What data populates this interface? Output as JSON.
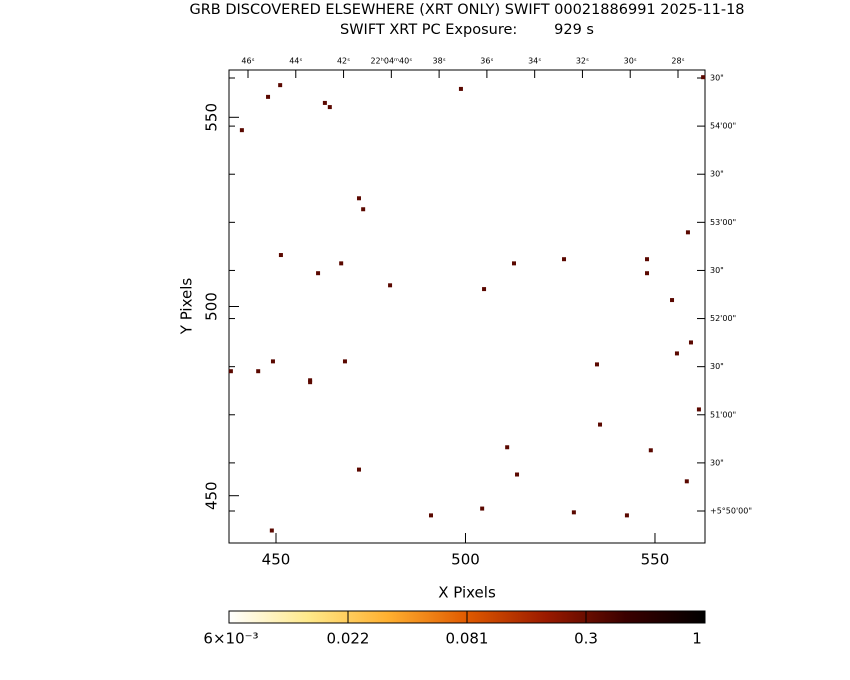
{
  "chart_data": {
    "type": "scatter",
    "title": "GRB DISCOVERED ELSEWHERE (XRT ONLY) SWIFT 00021886991 2025-11-18",
    "subtitle": "SWIFT XRT PC Exposure:        929 s",
    "x_label": "X Pixels",
    "y_label": "Y Pixels",
    "xlim": [
      437.6,
      563.2
    ],
    "ylim": [
      437.5,
      562.5
    ],
    "xticks": [
      450,
      500,
      550
    ],
    "yticks": [
      450,
      500,
      550
    ],
    "color": "#5a0800",
    "x": [
      562.7,
      451.1,
      447.9,
      441.0,
      462.9,
      464.2,
      498.8,
      471.9,
      473.0,
      558.7,
      451.3,
      467.2,
      461.1,
      480.1,
      512.8,
      526.0,
      547.9,
      547.9,
      504.9,
      554.5,
      559.5,
      555.8,
      449.2,
      468.2,
      534.7,
      438.1,
      445.3,
      459.0,
      459.0,
      561.6,
      535.5,
      511.0,
      548.9,
      471.9,
      513.6,
      558.4,
      504.4,
      528.6,
      490.9,
      542.6,
      448.9
    ],
    "y": [
      560.6,
      558.5,
      555.4,
      546.6,
      553.8,
      552.7,
      557.5,
      528.6,
      525.7,
      519.6,
      513.6,
      511.4,
      508.8,
      505.6,
      511.4,
      512.5,
      512.5,
      508.8,
      504.6,
      501.7,
      490.5,
      487.6,
      485.5,
      485.5,
      484.7,
      482.9,
      482.9,
      480.5,
      480.0,
      472.8,
      468.8,
      462.8,
      462.0,
      456.9,
      455.6,
      453.8,
      446.6,
      445.6,
      444.8,
      444.8,
      440.8
    ],
    "top_axis_labels": [
      "46ˢ",
      "44ˢ",
      "42ˢ",
      "22ʰ04ᵐ40ˢ",
      "38ˢ",
      "36ˢ",
      "34ˢ",
      "32ˢ",
      "30ˢ",
      "28ˢ"
    ],
    "right_axis_labels": [
      "30\"",
      "54'00\"",
      "30\"",
      "53'00\"",
      "30\"",
      "52'00\"",
      "30\"",
      "51'00\"",
      "30\"",
      "+5°50'00\""
    ],
    "colorbar": {
      "labels": [
        "6×10⁻³",
        "0.022",
        "0.081",
        "0.3",
        "1"
      ],
      "colors": [
        "#ffffff",
        "#ffe98a",
        "#ffb030",
        "#e05a00",
        "#9a1a00",
        "#3a0000",
        "#000000"
      ]
    }
  }
}
